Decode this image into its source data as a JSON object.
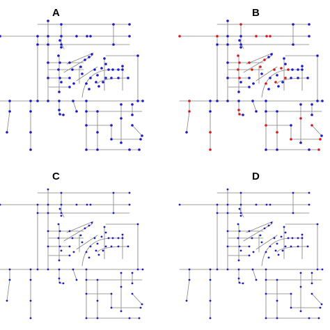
{
  "panels": [
    {
      "id": "A",
      "label": "A",
      "marker_color": "#1a1acc",
      "accent_color": "#1a1acc"
    },
    {
      "id": "B",
      "label": "B",
      "marker_color": "#1a1acc",
      "accent_color": "#d81818"
    },
    {
      "id": "C",
      "label": "C",
      "marker_color": "#1a1acc",
      "accent_color": "#1a1acc"
    },
    {
      "id": "D",
      "label": "D",
      "marker_color": "#1a1acc",
      "accent_color": "#1a1acc"
    }
  ],
  "colors": {
    "road": "#808080",
    "background": "#ffffff"
  }
}
